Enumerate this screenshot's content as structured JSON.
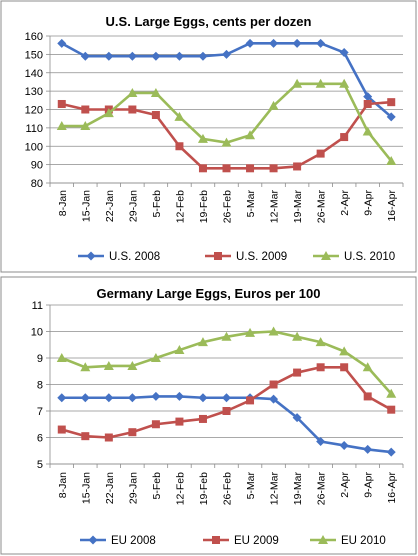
{
  "chart_data": [
    {
      "type": "line",
      "title": "U.S. Large Eggs, cents per dozen",
      "xlabel": "",
      "ylabel": "",
      "ylim": [
        80,
        160
      ],
      "yticks": [
        80,
        90,
        100,
        110,
        120,
        130,
        140,
        150,
        160
      ],
      "categories": [
        "8-Jan",
        "15-Jan",
        "22-Jan",
        "29-Jan",
        "5-Feb",
        "12-Feb",
        "19-Feb",
        "26-Feb",
        "5-Mar",
        "12-Mar",
        "19-Mar",
        "26-Mar",
        "2-Apr",
        "9-Apr",
        "16-Apr"
      ],
      "grid": "horizontal",
      "legend": "bottom",
      "series": [
        {
          "name": "U.S. 2008",
          "color": "#4572C4",
          "marker": "diamond",
          "values": [
            156,
            149,
            149,
            149,
            149,
            149,
            149,
            150,
            156,
            156,
            156,
            156,
            151,
            127,
            116
          ]
        },
        {
          "name": "U.S. 2009",
          "color": "#C0504D",
          "marker": "square",
          "values": [
            123,
            120,
            120,
            120,
            117,
            100,
            88,
            88,
            88,
            88,
            89,
            96,
            105,
            123,
            124
          ]
        },
        {
          "name": "U.S. 2010",
          "color": "#9BBB59",
          "marker": "triangle",
          "values": [
            111,
            111,
            118,
            129,
            129,
            116,
            104,
            102,
            106,
            122,
            134,
            134,
            134,
            108,
            92
          ]
        }
      ]
    },
    {
      "type": "line",
      "title": "Germany Large Eggs, Euros per 100",
      "xlabel": "",
      "ylabel": "",
      "ylim": [
        5,
        11
      ],
      "yticks": [
        5,
        6,
        7,
        8,
        9,
        10,
        11
      ],
      "categories": [
        "8-Jan",
        "15-Jan",
        "22-Jan",
        "29-Jan",
        "5-Feb",
        "12-Feb",
        "19-Feb",
        "26-Feb",
        "5-Mar",
        "12-Mar",
        "19-Mar",
        "26-Mar",
        "2-Apr",
        "9-Apr",
        "16-Apr"
      ],
      "grid": "horizontal",
      "legend": "bottom",
      "series": [
        {
          "name": "EU 2008",
          "color": "#4572C4",
          "marker": "diamond",
          "values": [
            7.5,
            7.5,
            7.5,
            7.5,
            7.55,
            7.55,
            7.5,
            7.5,
            7.5,
            7.45,
            6.75,
            5.85,
            5.7,
            5.55,
            5.45
          ]
        },
        {
          "name": "EU 2009",
          "color": "#C0504D",
          "marker": "square",
          "values": [
            6.3,
            6.05,
            6.0,
            6.2,
            6.5,
            6.6,
            6.7,
            7.0,
            7.4,
            8.0,
            8.45,
            8.65,
            8.65,
            7.55,
            7.05
          ]
        },
        {
          "name": "EU 2010",
          "color": "#9BBB59",
          "marker": "triangle",
          "values": [
            9.0,
            8.65,
            8.7,
            8.7,
            9.0,
            9.3,
            9.6,
            9.8,
            9.95,
            10.0,
            9.8,
            9.6,
            9.25,
            8.65,
            7.65
          ]
        }
      ]
    }
  ]
}
